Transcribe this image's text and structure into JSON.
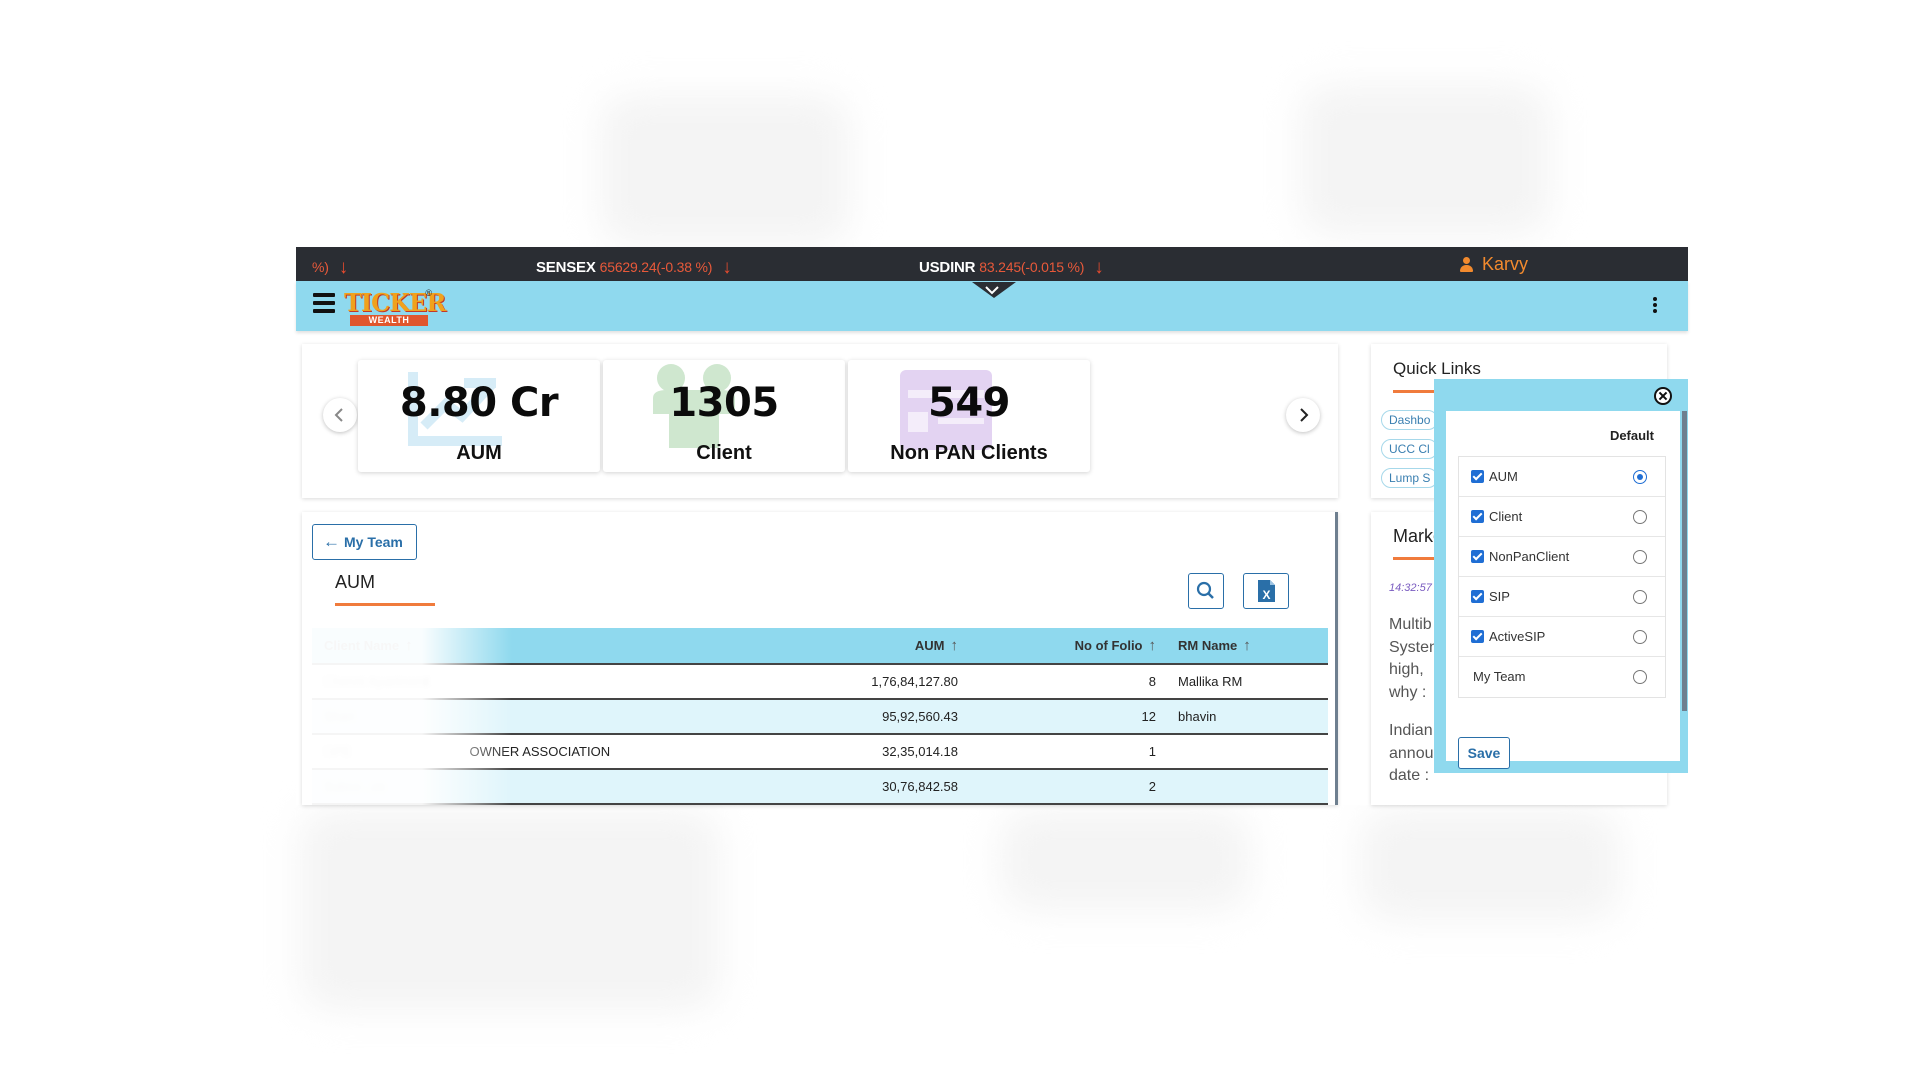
{
  "ticker": {
    "item0": {
      "value": "%)"
    },
    "sensex": {
      "label": "SENSEX",
      "value": "65629.24(-0.38 %)"
    },
    "usdinr": {
      "label": "USDINR",
      "value": "83.245(-0.015 %)"
    },
    "user": "Karvy"
  },
  "header": {
    "logo_top": "TICKER",
    "logo_bottom": "WEALTH",
    "logo_reg": "®"
  },
  "kpis": [
    {
      "value": "8.80 Cr",
      "label": "AUM"
    },
    {
      "value": "1305",
      "label": "Client"
    },
    {
      "value": "549",
      "label": "Non PAN Clients"
    }
  ],
  "team": {
    "back_button": "My Team",
    "title": "AUM",
    "columns": [
      "Client Name",
      "AUM",
      "No of Folio",
      "RM Name"
    ],
    "rows": [
      {
        "client": "Chenni Apartment",
        "aum": "1,76,84,127.80",
        "folio": "8",
        "rm": "Mallika RM"
      },
      {
        "client": "Shari",
        "aum": "95,92,560.43",
        "folio": "12",
        "rm": "bhavin"
      },
      {
        "client": "OWNER ASSOCIATION",
        "client_prefix": "OPE",
        "aum": "32,35,014.18",
        "folio": "1",
        "rm": ""
      },
      {
        "client": "Subco  ..os",
        "aum": "30,76,842.58",
        "folio": "2",
        "rm": ""
      }
    ]
  },
  "quick_links": {
    "title": "Quick Links",
    "chips": [
      "Dashbo",
      "UCC Cl",
      "Lump S"
    ]
  },
  "market": {
    "title": "Marke",
    "time": "14:32:57",
    "news1": [
      "Multib",
      "Systen",
      "high, ",
      "why :"
    ],
    "news2": [
      "Indian",
      "annou",
      "date :"
    ]
  },
  "popup": {
    "default_label": "Default",
    "options": [
      {
        "label": "AUM",
        "checked": true,
        "default": true
      },
      {
        "label": "Client",
        "checked": true,
        "default": false
      },
      {
        "label": "NonPanClient",
        "checked": true,
        "default": false
      },
      {
        "label": "SIP",
        "checked": true,
        "default": false
      },
      {
        "label": "ActiveSIP",
        "checked": true,
        "default": false
      },
      {
        "label": "My Team",
        "checked": false,
        "default": false
      }
    ],
    "save_label": "Save"
  },
  "colors": {
    "accent": "#8fd9ee",
    "ticker_bg": "#2a2d33",
    "negative": "#e8593a",
    "brand_orange": "#f07b3c",
    "button_blue": "#2a6fa8"
  }
}
